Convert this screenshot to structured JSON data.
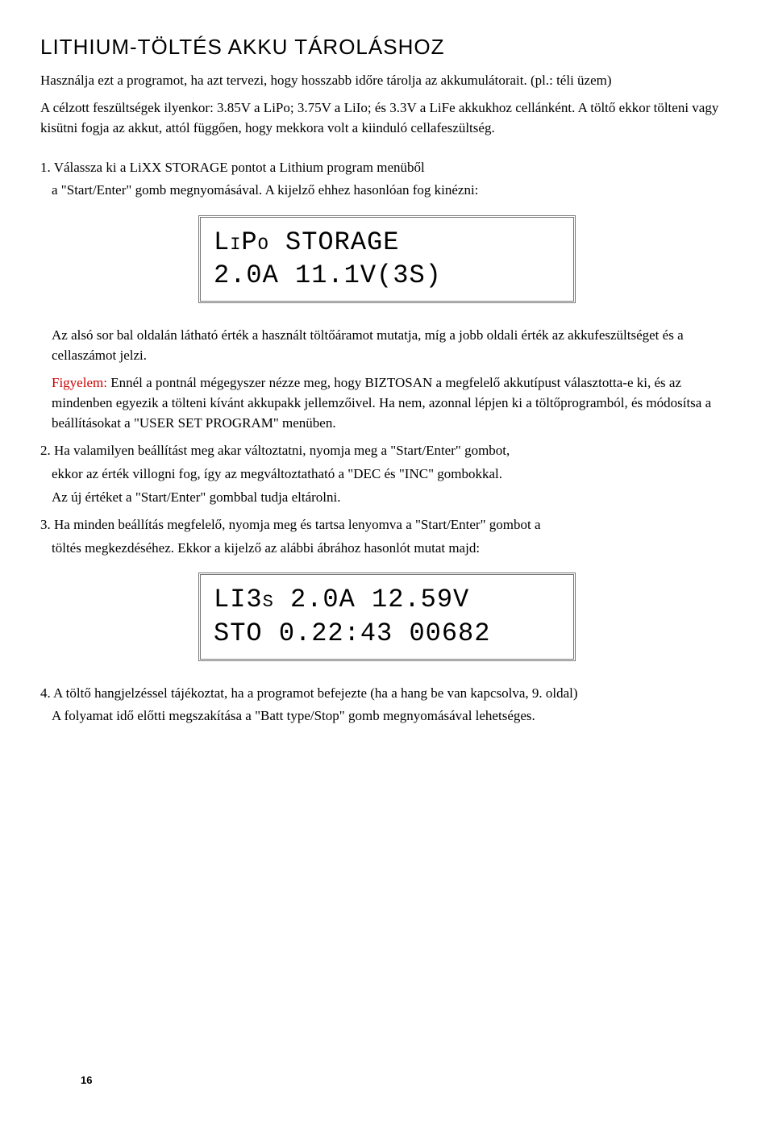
{
  "title": "LITHIUM-TÖLTÉS AKKU TÁROLÁSHOZ",
  "intro1": "Használja ezt a programot, ha azt tervezi, hogy hosszabb időre tárolja az akkumulátorait. (pl.: téli üzem)",
  "intro2": "A célzott feszültségek ilyenkor: 3.85V a LiPo; 3.75V a LiIo; és 3.3V a LiFe akkukhoz cellánként. A töltő ekkor tölteni vagy kisütni fogja az akkut, attól függően, hogy mekkora volt a kiinduló cellafeszültség.",
  "step1_a": "1. Válassza ki a  LiXX STORAGE pontot a Lithium program menüből",
  "step1_b": "a \"Start/Enter\" gomb megnyomásával. A kijelző ehhez hasonlóan fog kinézni:",
  "lcd1_line1": "LiPo STORAGE",
  "lcd1_line2": "2.0A   11.1V(3S)",
  "after_lcd1_a": "Az alsó sor bal oldalán látható érték a használt töltőáramot mutatja, míg a jobb oldali érték az akkufeszültséget és a cellaszámot jelzi.",
  "warn_label": "Figyelem:",
  "warn_text": "  Ennél a pontnál mégegyszer nézze meg, hogy BIZTOSAN a megfelelő akkutípust választotta-e ki, és az mindenben egyezik a tölteni kívánt akkupakk jellemzőivel. Ha nem, azonnal lépjen ki a töltőprogramból, és módosítsa a beállításokat a \"USER SET PROGRAM\" menüben.",
  "step2_a": "2. Ha valamilyen beállítást meg akar változtatni, nyomja meg a \"Start/Enter\" gombot,",
  "step2_b": "ekkor az érték villogni fog, így az megváltoztatható a \"DEC és \"INC\" gombokkal.",
  "step2_c": "Az új értéket a  \"Start/Enter\" gombbal tudja eltárolni.",
  "step3_a": "3. Ha minden beállítás megfelelő, nyomja meg és tartsa lenyomva a \"Start/Enter\" gombot a",
  "step3_b": "töltés megkezdéséhez. Ekkor a kijelző az alábbi ábrához hasonlót mutat majd:",
  "lcd2_line1": "LI3s  2.0A 12.59V",
  "lcd2_line2": "STO 0.22:43 00682",
  "step4_a": "4. A töltő hangjelzéssel tájékoztat, ha a programot befejezte (ha a hang be van kapcsolva, 9. oldal)",
  "step4_b": "A folyamat idő előtti megszakítása a \"Batt type/Stop\" gomb megnyomásával lehetséges.",
  "page_number": "16",
  "colors": {
    "text": "#000000",
    "bg": "#ffffff",
    "warn": "#cc0000",
    "lcd_border": "#777777"
  }
}
